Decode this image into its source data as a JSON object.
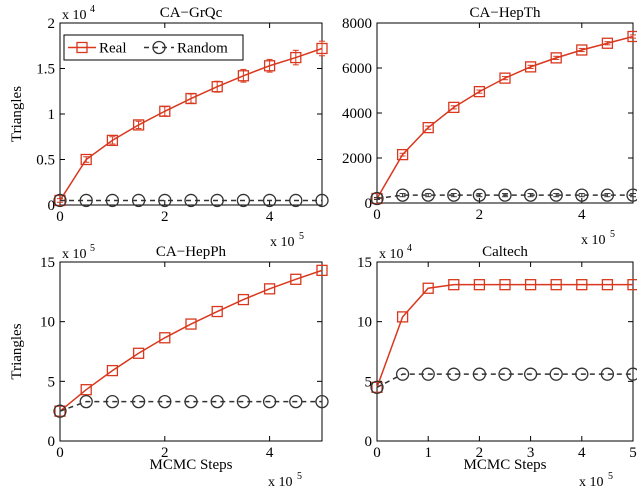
{
  "colors": {
    "real": "#d9381e",
    "random": "#333333",
    "axis": "#000000"
  },
  "legend": {
    "real_label": "Real",
    "random_label": "Random"
  },
  "chart_data": [
    {
      "type": "line",
      "title": "CA−GrQc",
      "ylabel": "Triangles",
      "xlabel": "",
      "x_multiplier": "x 10",
      "x_exponent": "5",
      "y_multiplier": "x 10",
      "y_exponent": "4",
      "xlim": [
        0,
        5
      ],
      "ylim": [
        0,
        2
      ],
      "xticks": [
        0,
        2,
        4
      ],
      "xtick_labels": [
        "0",
        "2",
        "4"
      ],
      "yticks": [
        0,
        0.5,
        1,
        1.5,
        2
      ],
      "ytick_labels": [
        "0",
        "0.5",
        "1",
        "1.5",
        "2"
      ],
      "legend_position": "top-left",
      "x": [
        0,
        0.5,
        1,
        1.5,
        2,
        2.5,
        3,
        3.5,
        4,
        4.5,
        5
      ],
      "series": [
        {
          "name": "Real",
          "values": [
            0.05,
            0.5,
            0.71,
            0.88,
            1.03,
            1.17,
            1.3,
            1.42,
            1.53,
            1.62,
            1.72
          ],
          "errors": [
            0.02,
            0.03,
            0.04,
            0.04,
            0.05,
            0.05,
            0.06,
            0.07,
            0.07,
            0.08,
            0.08
          ]
        },
        {
          "name": "Random",
          "values": [
            0.05,
            0.05,
            0.05,
            0.05,
            0.05,
            0.05,
            0.05,
            0.05,
            0.05,
            0.05,
            0.05
          ]
        }
      ]
    },
    {
      "type": "line",
      "title": "CA−HepTh",
      "ylabel": "",
      "xlabel": "",
      "x_multiplier": "x 10",
      "x_exponent": "5",
      "y_multiplier": "",
      "y_exponent": "",
      "xlim": [
        0,
        5
      ],
      "ylim": [
        0,
        8000
      ],
      "xticks": [
        0,
        2,
        4
      ],
      "xtick_labels": [
        "0",
        "2",
        "4"
      ],
      "yticks": [
        0,
        2000,
        4000,
        6000,
        8000
      ],
      "ytick_labels": [
        "0",
        "2000",
        "4000",
        "6000",
        "8000"
      ],
      "x": [
        0,
        0.5,
        1,
        1.5,
        2,
        2.5,
        3,
        3.5,
        4,
        4.5,
        5
      ],
      "series": [
        {
          "name": "Real",
          "values": [
            200,
            2150,
            3350,
            4250,
            4950,
            5550,
            6050,
            6450,
            6800,
            7100,
            7400
          ],
          "errors": [
            40,
            60,
            70,
            70,
            70,
            70,
            70,
            70,
            70,
            70,
            70
          ]
        },
        {
          "name": "Random",
          "values": [
            200,
            350,
            350,
            350,
            350,
            350,
            350,
            350,
            350,
            350,
            350
          ],
          "errors": [
            40,
            70,
            70,
            70,
            70,
            70,
            70,
            70,
            70,
            70,
            70
          ]
        }
      ]
    },
    {
      "type": "line",
      "title": "CA−HepPh",
      "ylabel": "Triangles",
      "xlabel": "MCMC Steps",
      "x_multiplier": "x 10",
      "x_exponent": "5",
      "y_multiplier": "x 10",
      "y_exponent": "5",
      "xlim": [
        0,
        5
      ],
      "ylim": [
        0,
        15
      ],
      "xticks": [
        0,
        2,
        4
      ],
      "xtick_labels": [
        "0",
        "2",
        "4"
      ],
      "yticks": [
        0,
        5,
        10,
        15
      ],
      "ytick_labels": [
        "0",
        "5",
        "10",
        "15"
      ],
      "x": [
        0,
        0.5,
        1,
        1.5,
        2,
        2.5,
        3,
        3.5,
        4,
        4.5,
        5
      ],
      "series": [
        {
          "name": "Real",
          "values": [
            2.5,
            4.3,
            5.9,
            7.35,
            8.65,
            9.8,
            10.85,
            11.85,
            12.75,
            13.55,
            14.3
          ]
        },
        {
          "name": "Random",
          "values": [
            2.5,
            3.3,
            3.3,
            3.3,
            3.3,
            3.3,
            3.3,
            3.3,
            3.3,
            3.3,
            3.3
          ]
        }
      ]
    },
    {
      "type": "line",
      "title": "Caltech",
      "ylabel": "",
      "xlabel": "MCMC Steps",
      "x_multiplier": "x 10",
      "x_exponent": "5",
      "y_multiplier": "x 10",
      "y_exponent": "4",
      "xlim": [
        0,
        5
      ],
      "ylim": [
        0,
        15
      ],
      "xticks": [
        0,
        1,
        2,
        3,
        4,
        5
      ],
      "xtick_labels": [
        "0",
        "1",
        "2",
        "3",
        "4",
        "5"
      ],
      "yticks": [
        0,
        5,
        10,
        15
      ],
      "ytick_labels": [
        "0",
        "5",
        "10",
        "15"
      ],
      "x": [
        0,
        0.5,
        1,
        1.5,
        2,
        2.5,
        3,
        3.5,
        4,
        4.5,
        5
      ],
      "series": [
        {
          "name": "Real",
          "values": [
            4.5,
            10.4,
            12.8,
            13.1,
            13.1,
            13.1,
            13.1,
            13.1,
            13.1,
            13.1,
            13.1
          ]
        },
        {
          "name": "Random",
          "values": [
            4.5,
            5.6,
            5.6,
            5.6,
            5.6,
            5.6,
            5.6,
            5.6,
            5.6,
            5.6,
            5.6
          ]
        }
      ]
    }
  ]
}
